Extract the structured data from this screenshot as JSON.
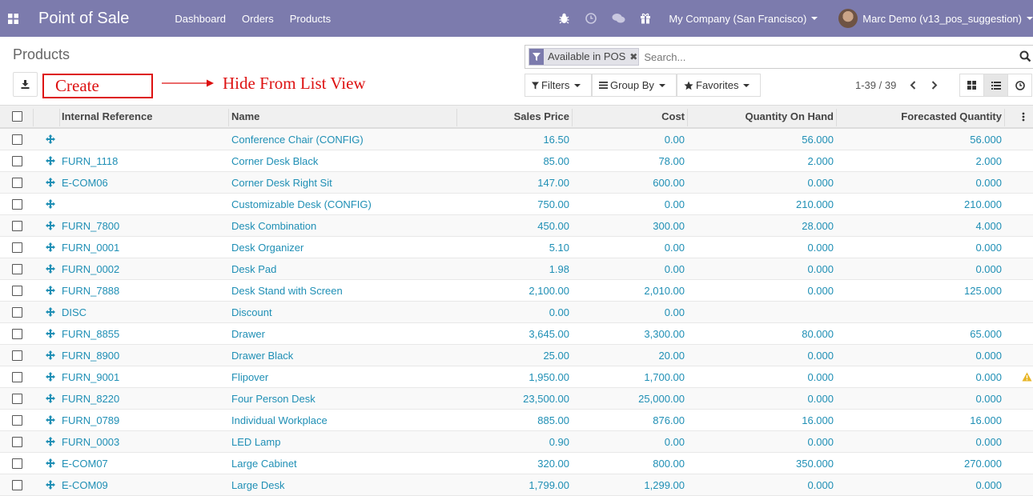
{
  "navbar": {
    "app_title": "Point of Sale",
    "menu": [
      "Dashboard",
      "Orders",
      "Products"
    ],
    "icons": [
      "bug-icon",
      "clock-icon",
      "chat-icon",
      "gift-icon"
    ],
    "company": "My Company (San Francisco)",
    "user": "Marc Demo (v13_pos_suggestion)",
    "bg_color": "#7c7bad"
  },
  "page": {
    "title": "Products",
    "create_label": "Create",
    "annotation": "Hide From List View"
  },
  "search": {
    "facet_label": "Available in POS",
    "placeholder": "Search..."
  },
  "toolbar": {
    "filters": "Filters",
    "group_by": "Group By",
    "favorites": "Favorites",
    "pager": "1-39 / 39"
  },
  "table": {
    "headers": {
      "ref": "Internal Reference",
      "name": "Name",
      "price": "Sales Price",
      "cost": "Cost",
      "qty": "Quantity On Hand",
      "forecast": "Forecasted Quantity"
    },
    "rows": [
      {
        "ref": "",
        "name": "Conference Chair (CONFIG)",
        "price": "16.50",
        "cost": "0.00",
        "qty": "56.000",
        "forecast": "56.000"
      },
      {
        "ref": "FURN_1118",
        "name": "Corner Desk Black",
        "price": "85.00",
        "cost": "78.00",
        "qty": "2.000",
        "forecast": "2.000"
      },
      {
        "ref": "E-COM06",
        "name": "Corner Desk Right Sit",
        "price": "147.00",
        "cost": "600.00",
        "qty": "0.000",
        "forecast": "0.000"
      },
      {
        "ref": "",
        "name": "Customizable Desk (CONFIG)",
        "price": "750.00",
        "cost": "0.00",
        "qty": "210.000",
        "forecast": "210.000"
      },
      {
        "ref": "FURN_7800",
        "name": "Desk Combination",
        "price": "450.00",
        "cost": "300.00",
        "qty": "28.000",
        "forecast": "4.000"
      },
      {
        "ref": "FURN_0001",
        "name": "Desk Organizer",
        "price": "5.10",
        "cost": "0.00",
        "qty": "0.000",
        "forecast": "0.000"
      },
      {
        "ref": "FURN_0002",
        "name": "Desk Pad",
        "price": "1.98",
        "cost": "0.00",
        "qty": "0.000",
        "forecast": "0.000"
      },
      {
        "ref": "FURN_7888",
        "name": "Desk Stand with Screen",
        "price": "2,100.00",
        "cost": "2,010.00",
        "qty": "0.000",
        "forecast": "125.000"
      },
      {
        "ref": "DISC",
        "name": "Discount",
        "price": "0.00",
        "cost": "0.00",
        "qty": "",
        "forecast": ""
      },
      {
        "ref": "FURN_8855",
        "name": "Drawer",
        "price": "3,645.00",
        "cost": "3,300.00",
        "qty": "80.000",
        "forecast": "65.000"
      },
      {
        "ref": "FURN_8900",
        "name": "Drawer Black",
        "price": "25.00",
        "cost": "20.00",
        "qty": "0.000",
        "forecast": "0.000"
      },
      {
        "ref": "FURN_9001",
        "name": "Flipover",
        "price": "1,950.00",
        "cost": "1,700.00",
        "qty": "0.000",
        "forecast": "0.000",
        "warning": true
      },
      {
        "ref": "FURN_8220",
        "name": "Four Person Desk",
        "price": "23,500.00",
        "cost": "25,000.00",
        "qty": "0.000",
        "forecast": "0.000"
      },
      {
        "ref": "FURN_0789",
        "name": "Individual Workplace",
        "price": "885.00",
        "cost": "876.00",
        "qty": "16.000",
        "forecast": "16.000"
      },
      {
        "ref": "FURN_0003",
        "name": "LED Lamp",
        "price": "0.90",
        "cost": "0.00",
        "qty": "0.000",
        "forecast": "0.000"
      },
      {
        "ref": "E-COM07",
        "name": "Large Cabinet",
        "price": "320.00",
        "cost": "800.00",
        "qty": "350.000",
        "forecast": "270.000"
      },
      {
        "ref": "E-COM09",
        "name": "Large Desk",
        "price": "1,799.00",
        "cost": "1,299.00",
        "qty": "0.000",
        "forecast": "0.000"
      }
    ]
  }
}
